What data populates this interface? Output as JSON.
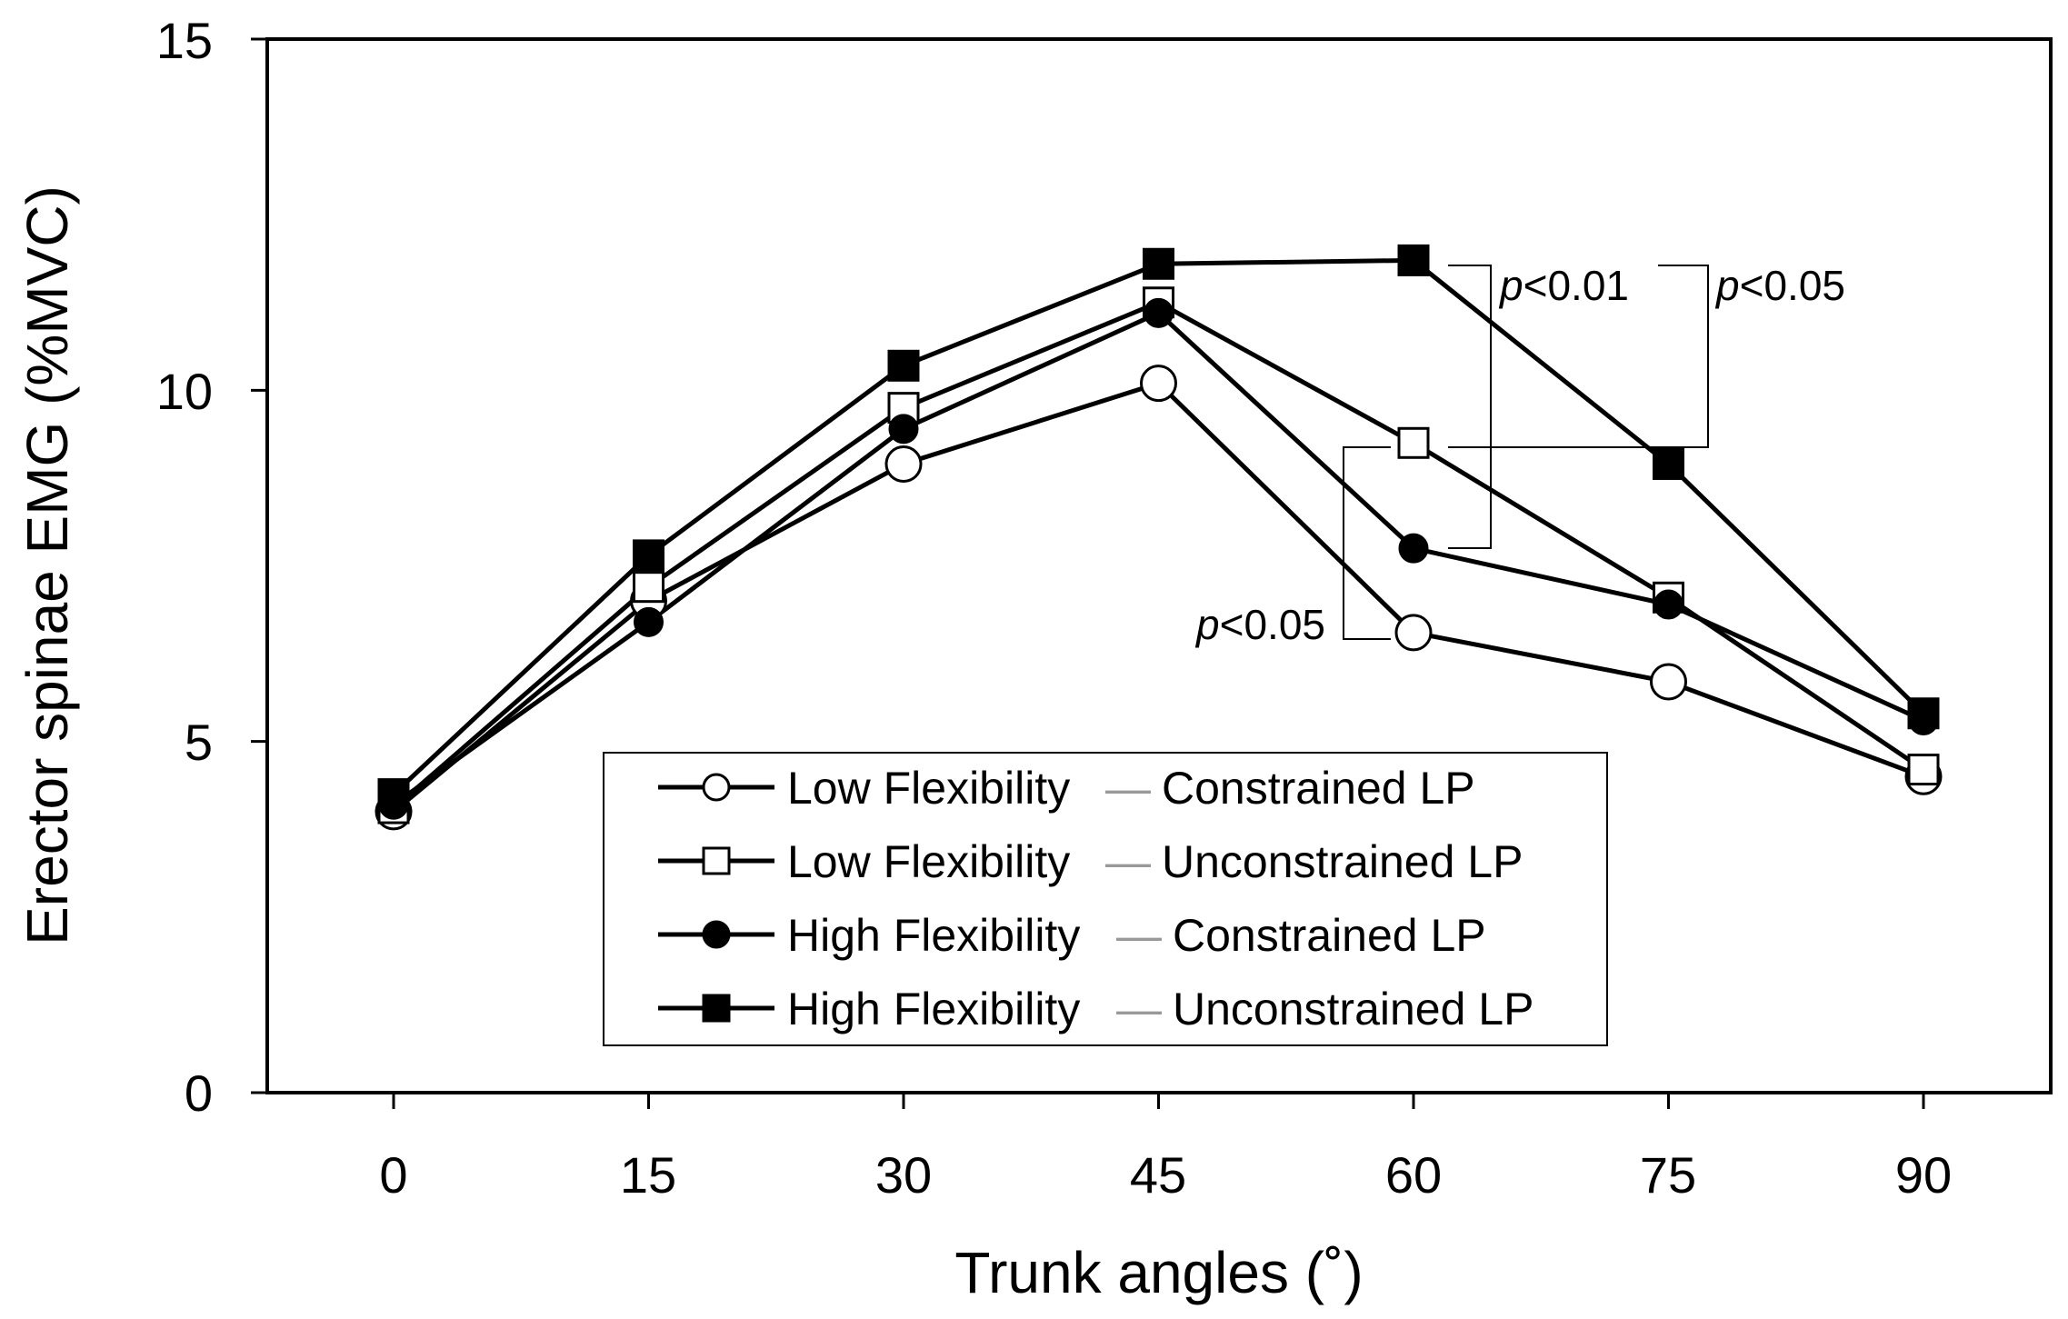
{
  "chart_data": {
    "type": "line",
    "title": "",
    "xlabel": "Trunk angles (˚)",
    "ylabel": "Erector spinae EMG (%MVC)",
    "x": [
      0,
      15,
      30,
      45,
      60,
      75,
      90
    ],
    "x_tick_labels": [
      "0",
      "15",
      "30",
      "45",
      "60",
      "75",
      "90"
    ],
    "y_tick_labels": [
      "0",
      "5",
      "10",
      "15"
    ],
    "y_ticks": [
      0,
      5,
      10,
      15
    ],
    "ylim": [
      0,
      15
    ],
    "grid": false,
    "legend_position": "bottom-center",
    "series": [
      {
        "group": "Low Flexibility",
        "condition": "Constrained LP",
        "marker": "circle-open",
        "values": [
          4.0,
          7.0,
          8.95,
          10.1,
          6.55,
          5.85,
          4.5
        ]
      },
      {
        "group": "Low Flexibility",
        "condition": "Unconstrained LP",
        "marker": "square-open",
        "values": [
          4.05,
          7.2,
          9.75,
          11.25,
          9.25,
          7.05,
          4.6
        ]
      },
      {
        "group": "High Flexibility",
        "condition": "Constrained LP",
        "marker": "circle-filled",
        "values": [
          4.1,
          6.7,
          9.45,
          11.1,
          7.75,
          6.95,
          5.3
        ]
      },
      {
        "group": "High Flexibility",
        "condition": "Unconstrained LP",
        "marker": "square-filled",
        "values": [
          4.25,
          7.65,
          10.35,
          11.8,
          11.85,
          8.95,
          5.4
        ]
      }
    ],
    "legend_separator": "—",
    "annotations": [
      {
        "italic": "p",
        "text": "<0.01"
      },
      {
        "italic": "p",
        "text": "<0.05"
      },
      {
        "italic": "p",
        "text": "<0.05"
      }
    ]
  }
}
